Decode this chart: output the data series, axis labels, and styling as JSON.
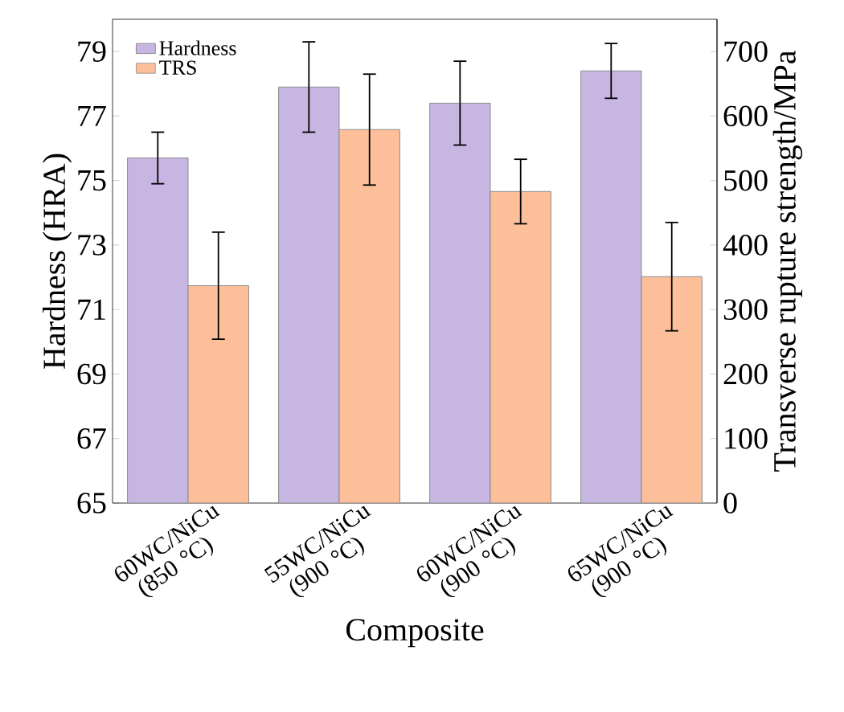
{
  "chart_data": {
    "type": "bar",
    "xlabel": "Composite",
    "ylabel": "Hardness (HRA)",
    "y2label": "Transverse rupture strength/MPa",
    "categories": [
      "60WC/NiCu (850 °C)",
      "55WC/NiCu (900 °C)",
      "60WC/NiCu (900 °C)",
      "65WC/NiCu (900 °C)"
    ],
    "series": [
      {
        "name": "Hardness",
        "color": "#c8b6e2",
        "values": [
          75.7,
          77.9,
          77.4,
          78.4
        ],
        "errors": [
          0.8,
          1.4,
          1.3,
          0.85
        ]
      },
      {
        "name": "TRS",
        "color": "#fdbf9a",
        "axis": "y2",
        "values": [
          337,
          579,
          483,
          351
        ],
        "errors": [
          83,
          86,
          50,
          84
        ]
      }
    ],
    "ylim": [
      65,
      80
    ],
    "yticks": [
      65,
      67,
      69,
      71,
      73,
      75,
      77,
      79
    ],
    "y2lim": [
      0,
      750
    ],
    "y2ticks": [
      0,
      100,
      200,
      300,
      400,
      500,
      600,
      700
    ],
    "legend": "top left"
  }
}
